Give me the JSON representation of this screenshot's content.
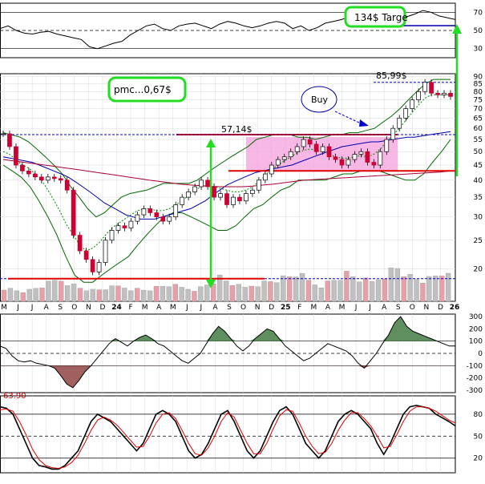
{
  "chart_data": [
    {
      "panel": "rsi",
      "type": "line",
      "yticks": [
        70,
        50,
        30
      ],
      "reference_lines": [
        70,
        50,
        30
      ],
      "series": [
        {
          "color": "#000000",
          "values": [
            52,
            55,
            50,
            47,
            46,
            48,
            49,
            46,
            44,
            42,
            40,
            32,
            30,
            33,
            36,
            38,
            45,
            50,
            55,
            57,
            52,
            50,
            55,
            57,
            58,
            55,
            52,
            57,
            60,
            58,
            55,
            53,
            55,
            58,
            60,
            58,
            52,
            55,
            50,
            53,
            58,
            60,
            62,
            65,
            68,
            63,
            58,
            62,
            60,
            62,
            65,
            68,
            72,
            70,
            66,
            64,
            62
          ]
        }
      ],
      "annotation": "134$ Targe"
    },
    {
      "panel": "price",
      "type": "candlestick",
      "yticks": [
        90,
        85,
        80,
        75,
        70,
        65,
        60,
        55,
        50,
        45,
        40,
        35,
        30,
        25,
        20
      ],
      "x_ticks": [
        "M",
        "J",
        "J",
        "A",
        "S",
        "O",
        "N",
        "D",
        "24",
        "F",
        "M",
        "A",
        "M",
        "J",
        "J",
        "A",
        "S",
        "O",
        "N",
        "D",
        "25",
        "F",
        "M",
        "A",
        "M",
        "J",
        "J",
        "A",
        "S",
        "O",
        "N",
        "D",
        "26"
      ],
      "closes": [
        57.5,
        52,
        45,
        43,
        42,
        41,
        40,
        41,
        40.5,
        40,
        37,
        26,
        23,
        21.5,
        19.5,
        21,
        25,
        27,
        28,
        27.5,
        29,
        30.5,
        32,
        31,
        30,
        29,
        30,
        33,
        35,
        36.5,
        38,
        40,
        38,
        35,
        36,
        33,
        35,
        34,
        36,
        37,
        40,
        42,
        45,
        47,
        48,
        50,
        52,
        55,
        53,
        50,
        52,
        48,
        47,
        45,
        47,
        49,
        50,
        46,
        45,
        50,
        55,
        60,
        65,
        70,
        75,
        80,
        86,
        79,
        78,
        79,
        77
      ],
      "sma_fast": [
        50,
        49,
        47,
        45,
        44,
        42,
        40,
        37,
        34,
        31,
        28,
        26,
        24,
        23,
        23.5,
        24.5,
        26,
        27.5,
        28.5,
        29.5,
        30.5,
        31.5,
        32,
        32,
        31.5,
        31.5,
        32,
        33,
        34,
        35.5,
        37,
        38,
        38.5,
        38,
        37.5,
        37,
        36.5,
        36.5,
        37,
        38,
        39.5,
        41.5,
        43.5,
        45,
        46.5,
        48,
        49.5,
        50.5,
        51,
        50.5,
        50,
        49,
        48,
        47.5,
        47.5,
        48,
        48.5,
        48,
        49,
        51,
        54,
        57,
        60,
        64,
        68,
        72,
        76,
        78,
        78,
        78,
        78
      ],
      "sma_slow": [
        48,
        47.5,
        47,
        46.5,
        46,
        45,
        44,
        43,
        42,
        41,
        39.5,
        38,
        36.5,
        35,
        33.5,
        32.5,
        31.5,
        30.5,
        30,
        29.5,
        29.5,
        29.5,
        30,
        30.5,
        31,
        31.5,
        32,
        33,
        34,
        35.5,
        37,
        38.5,
        39.5,
        40.5,
        41.5,
        42.5,
        43,
        43.5,
        44,
        44.5,
        45,
        46,
        47,
        48,
        49,
        50,
        51,
        52,
        52.5,
        53,
        53.5,
        54,
        54,
        54.5,
        55,
        55.5,
        56,
        56,
        56.5,
        57,
        57.5,
        58,
        58.5
      ],
      "sma_long": [
        47,
        46.5,
        46,
        45.5,
        45,
        44.5,
        44,
        43.5,
        43,
        42.5,
        42,
        41.5,
        41,
        40.5,
        40,
        39.6,
        39.2,
        38.8,
        38.5,
        38.3,
        38.1,
        38,
        38,
        38,
        38.2,
        38.5,
        38.8,
        39.2,
        39.6,
        40,
        40.2,
        40.4,
        40.6,
        40.8,
        41,
        41.2,
        41.4,
        41.6,
        41.8,
        42,
        42.2,
        42.4,
        42.6,
        43
      ],
      "bb_upper": [
        58,
        57,
        56,
        54,
        51,
        48,
        45,
        42,
        38,
        35,
        32,
        30,
        31,
        33,
        35,
        36,
        36.5,
        37,
        38,
        39,
        39,
        39,
        39,
        40,
        42,
        44,
        46,
        48,
        50,
        52,
        55,
        56,
        57,
        57,
        57,
        56,
        56,
        55,
        56,
        57,
        57,
        58,
        58,
        59,
        60,
        63,
        66,
        70,
        75,
        80,
        85,
        88,
        88,
        88
      ],
      "bb_lower": [
        45,
        43,
        41,
        38,
        34,
        30,
        26,
        22,
        19,
        18,
        18,
        19,
        20,
        21,
        22,
        24,
        26,
        28,
        30,
        31,
        31,
        30,
        29,
        28,
        27,
        27,
        28,
        30,
        32,
        33,
        35,
        37,
        38,
        40,
        40,
        40,
        40,
        41,
        42,
        42,
        43,
        43,
        43,
        42,
        41,
        40,
        40,
        42,
        46,
        50,
        55
      ],
      "volume": [
        2,
        1.8,
        1.6,
        1.5,
        1.6,
        1.9,
        2.2,
        2.6,
        3,
        3.2,
        2.8,
        2.4,
        2,
        1.8,
        1.6,
        1.7,
        1.9,
        2,
        2.2,
        2.1,
        1.9,
        1.8,
        1.7,
        1.8,
        2,
        2.2,
        2.4,
        2.2,
        2,
        1.9,
        1.8,
        2,
        2.5,
        3,
        3.5,
        3,
        2.6,
        2.2,
        2,
        2.4,
        2.6,
        2.8,
        3,
        3.2,
        3.4,
        3.6,
        4,
        3.6,
        3,
        2.6,
        2.4,
        2.8,
        3.2,
        3.6,
        4,
        3.6,
        3.2,
        3,
        2.8,
        3.4,
        4,
        4.6,
        5,
        4.2,
        3.6,
        3.2,
        3,
        3.2,
        3.6,
        4,
        5
      ],
      "lines": [
        {
          "label": "57,14$",
          "value": 57.14,
          "color": "#e00000"
        },
        {
          "label": "",
          "value": 43,
          "color": "#e00000"
        },
        {
          "label": "",
          "value": 57.14,
          "color": "#0000cc"
        },
        {
          "label": "85,99$",
          "value": 85.99,
          "color": "#0000cc"
        },
        {
          "label": "",
          "value": 18.5,
          "color": "#0000cc"
        }
      ],
      "annotations": [
        "pmc...0,67$",
        "Buy",
        "134$ Targe"
      ]
    },
    {
      "panel": "cci",
      "type": "area",
      "yticks": [
        300,
        200,
        100,
        0,
        -100,
        -200,
        -300
      ],
      "reference_lines": [
        100,
        0,
        -100
      ],
      "series": [
        {
          "color": "#000000",
          "values": [
            60,
            40,
            -20,
            -60,
            -70,
            -60,
            -80,
            -90,
            -100,
            -120,
            -180,
            -250,
            -280,
            -220,
            -150,
            -100,
            -40,
            20,
            80,
            120,
            90,
            60,
            100,
            130,
            150,
            120,
            80,
            60,
            20,
            -20,
            -60,
            -80,
            -40,
            0,
            80,
            160,
            220,
            180,
            120,
            60,
            20,
            60,
            120,
            160,
            200,
            180,
            120,
            60,
            20,
            -20,
            -60,
            -40,
            0,
            40,
            80,
            60,
            40,
            20,
            -20,
            -80,
            -120,
            -60,
            0,
            80,
            150,
            250,
            300,
            220,
            180,
            160,
            140,
            120,
            100,
            80,
            60,
            60
          ]
        }
      ]
    },
    {
      "panel": "stochastic",
      "type": "line",
      "label": "63.90",
      "yticks": [
        80,
        50,
        20
      ],
      "reference_lines": [
        80,
        50,
        20
      ],
      "series": [
        {
          "color": "#000000",
          "values": [
            90,
            88,
            80,
            60,
            40,
            20,
            10,
            8,
            5,
            5,
            10,
            20,
            30,
            50,
            70,
            80,
            75,
            70,
            60,
            50,
            40,
            30,
            40,
            60,
            80,
            85,
            80,
            70,
            50,
            30,
            20,
            25,
            40,
            60,
            80,
            85,
            70,
            50,
            30,
            20,
            30,
            50,
            70,
            85,
            90,
            80,
            60,
            40,
            30,
            20,
            30,
            50,
            70,
            80,
            85,
            80,
            70,
            60,
            40,
            25,
            40,
            60,
            80,
            90,
            92,
            90,
            88,
            80,
            75,
            70,
            64
          ]
        },
        {
          "color": "#e00000",
          "values": [
            86,
            87,
            84,
            70,
            52,
            32,
            18,
            10,
            7,
            6,
            8,
            14,
            24,
            40,
            58,
            72,
            76,
            72,
            65,
            55,
            45,
            35,
            36,
            50,
            68,
            80,
            82,
            74,
            58,
            40,
            26,
            24,
            34,
            50,
            70,
            82,
            76,
            58,
            40,
            26,
            26,
            40,
            60,
            78,
            86,
            84,
            68,
            50,
            36,
            26,
            28,
            40,
            58,
            72,
            82,
            82,
            74,
            64,
            50,
            34,
            36,
            52,
            70,
            84,
            90,
            90,
            88,
            84,
            78,
            72,
            68
          ]
        }
      ]
    }
  ],
  "labels": {
    "target": "134$ Targe",
    "pmc": "pmc...0,67$",
    "buy": "Buy",
    "resistance": "57,14$",
    "high": "85,99$",
    "stoch_value": "63.90"
  },
  "ticks": {
    "rsi": [
      "70",
      "50",
      "30"
    ],
    "price": [
      "90",
      "85",
      "80",
      "75",
      "70",
      "65",
      "60",
      "55",
      "50",
      "45",
      "40",
      "35",
      "30",
      "25",
      "20"
    ],
    "cci": [
      "300",
      "200",
      "100",
      "0",
      "-100",
      "-200",
      "-300"
    ],
    "stoch": [
      "80",
      "50",
      "20"
    ],
    "x": [
      "M",
      "J",
      "J",
      "A",
      "S",
      "O",
      "N",
      "D",
      "24",
      "F",
      "M",
      "A",
      "M",
      "J",
      "J",
      "A",
      "S",
      "O",
      "N",
      "D",
      "25",
      "F",
      "M",
      "A",
      "M",
      "J",
      "J",
      "A",
      "S",
      "O",
      "N",
      "D",
      "26"
    ]
  },
  "colors": {
    "up_candle": "#ffffff",
    "down_candle": "#cc0033",
    "resistance_line": "#e00000",
    "range_box": "#f5a0dd",
    "annotation_border": "#22dd22",
    "arrow": "#22dd22",
    "cci_positive": "#5f8f5f",
    "cci_negative": "#a06060",
    "volume_up": "#c0c0c0",
    "volume_down": "#e8a0a8"
  }
}
